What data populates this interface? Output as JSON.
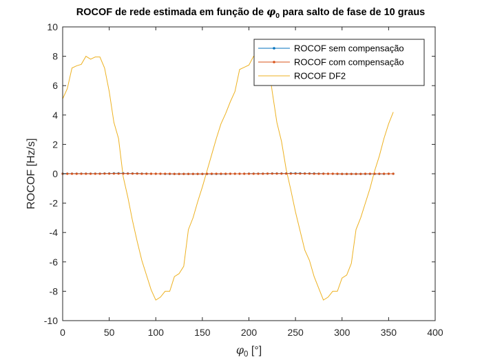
{
  "chart_data": {
    "type": "line",
    "title": {
      "prefix": "ROCOF de rede estimada em função de ",
      "symbol": "φ",
      "subscript": "0",
      "suffix": " para salto de fase de 10 graus"
    },
    "xlabel": {
      "symbol": "φ",
      "subscript": "0",
      "unit": " [°]"
    },
    "ylabel": "ROCOF [Hz/s]",
    "xlim": [
      0,
      400
    ],
    "ylim": [
      -10,
      10
    ],
    "xticks": [
      "0",
      "50",
      "100",
      "150",
      "200",
      "250",
      "300",
      "350",
      "400"
    ],
    "yticks": [
      "-10",
      "-8",
      "-6",
      "-4",
      "-2",
      "0",
      "2",
      "4",
      "6",
      "8",
      "10"
    ],
    "grid": false,
    "legend_position": "top-right",
    "colors": {
      "blue": "#0072BD",
      "orange": "#D95319",
      "yellow": "#EDB120"
    },
    "series": [
      {
        "name": "ROCOF sem compensação",
        "color": "#0072BD",
        "marker": "dot",
        "x": [
          0,
          5,
          10,
          15,
          20,
          25,
          30,
          35,
          40,
          45,
          50,
          55,
          60,
          65,
          70,
          75,
          80,
          85,
          90,
          95,
          100,
          105,
          110,
          115,
          120,
          125,
          130,
          135,
          140,
          145,
          150,
          155,
          160,
          165,
          170,
          175,
          180,
          185,
          190,
          195,
          200,
          205,
          210,
          215,
          220,
          225,
          230,
          235,
          240,
          245,
          250,
          255,
          260,
          265,
          270,
          275,
          280,
          285,
          290,
          295,
          300,
          305,
          310,
          315,
          320,
          325,
          330,
          335,
          340,
          345,
          350,
          355
        ],
        "y": [
          0.01,
          0.01,
          0.01,
          0.01,
          0.01,
          0.01,
          0.01,
          0.01,
          0.01,
          0.02,
          0.02,
          0.03,
          0.03,
          0.03,
          0.02,
          0.02,
          0.02,
          0.01,
          0.01,
          0.0,
          0.0,
          0.0,
          -0.01,
          -0.01,
          -0.01,
          -0.01,
          -0.01,
          -0.01,
          -0.01,
          -0.01,
          -0.01,
          -0.01,
          -0.01,
          -0.01,
          -0.01,
          -0.01,
          0.0,
          0.0,
          0.0,
          0.0,
          0.01,
          0.01,
          0.01,
          0.01,
          0.01,
          0.02,
          0.02,
          0.02,
          0.02,
          0.03,
          0.03,
          0.03,
          0.02,
          0.02,
          0.02,
          0.01,
          0.01,
          0.0,
          0.0,
          -0.01,
          -0.01,
          -0.01,
          -0.01,
          -0.01,
          -0.01,
          -0.01,
          -0.01,
          -0.01,
          -0.01,
          -0.01,
          0.0,
          0.0
        ]
      },
      {
        "name": "ROCOF com compensação",
        "color": "#D95319",
        "marker": "dot",
        "x": [
          0,
          5,
          10,
          15,
          20,
          25,
          30,
          35,
          40,
          45,
          50,
          55,
          60,
          65,
          70,
          75,
          80,
          85,
          90,
          95,
          100,
          105,
          110,
          115,
          120,
          125,
          130,
          135,
          140,
          145,
          150,
          155,
          160,
          165,
          170,
          175,
          180,
          185,
          190,
          195,
          200,
          205,
          210,
          215,
          220,
          225,
          230,
          235,
          240,
          245,
          250,
          255,
          260,
          265,
          270,
          275,
          280,
          285,
          290,
          295,
          300,
          305,
          310,
          315,
          320,
          325,
          330,
          335,
          340,
          345,
          350,
          355
        ],
        "y": [
          0.0,
          0.0,
          0.0,
          0.0,
          0.0,
          0.0,
          0.0,
          0.0,
          0.0,
          0.01,
          0.01,
          0.01,
          0.01,
          0.01,
          0.01,
          0.01,
          0.01,
          0.0,
          0.0,
          0.0,
          0.0,
          0.0,
          0.0,
          0.0,
          -0.01,
          -0.01,
          -0.01,
          -0.01,
          -0.01,
          -0.01,
          -0.01,
          0.0,
          0.0,
          0.0,
          0.0,
          0.0,
          0.0,
          0.0,
          0.0,
          0.0,
          0.0,
          0.0,
          0.0,
          0.0,
          0.01,
          0.01,
          0.01,
          0.01,
          0.01,
          0.01,
          0.01,
          0.01,
          0.01,
          0.01,
          0.0,
          0.0,
          0.0,
          0.0,
          0.0,
          0.0,
          -0.01,
          -0.01,
          -0.01,
          -0.01,
          -0.01,
          0.0,
          0.0,
          0.0,
          0.0,
          0.0,
          0.0,
          0.0
        ]
      },
      {
        "name": "ROCOF DF2",
        "color": "#EDB120",
        "marker": "none",
        "x": [
          0,
          5,
          10,
          15,
          20,
          25,
          30,
          35,
          40,
          45,
          50,
          55,
          60,
          65,
          70,
          75,
          80,
          85,
          90,
          95,
          100,
          105,
          110,
          115,
          120,
          125,
          130,
          135,
          140,
          145,
          150,
          155,
          160,
          165,
          170,
          175,
          180,
          185,
          190,
          195,
          200,
          205,
          210,
          215,
          220,
          225,
          230,
          235,
          240,
          245,
          250,
          255,
          260,
          265,
          270,
          275,
          280,
          285,
          290,
          295,
          300,
          305,
          310,
          315,
          320,
          325,
          330,
          335,
          340,
          345,
          350,
          355
        ],
        "y": [
          5.1,
          5.8,
          7.2,
          7.35,
          7.45,
          8.0,
          7.8,
          7.95,
          7.95,
          7.2,
          5.6,
          3.5,
          2.4,
          -0.2,
          -1.6,
          -3.2,
          -4.6,
          -5.9,
          -6.9,
          -7.9,
          -8.6,
          -8.4,
          -8.0,
          -8.0,
          -7.0,
          -6.8,
          -6.3,
          -3.8,
          -3.0,
          -1.9,
          -0.9,
          0.2,
          1.3,
          2.4,
          3.4,
          4.1,
          4.9,
          5.6,
          7.1,
          7.25,
          7.4,
          8.0,
          8.0,
          7.8,
          7.9,
          5.6,
          3.5,
          2.2,
          0.3,
          -1.1,
          -2.6,
          -3.9,
          -5.2,
          -5.9,
          -7.0,
          -7.8,
          -8.6,
          -8.4,
          -8.0,
          -8.0,
          -7.1,
          -6.9,
          -6.1,
          -3.8,
          -3.0,
          -2.0,
          -1.0,
          0.2,
          1.2,
          2.4,
          3.4,
          4.2
        ]
      }
    ]
  }
}
